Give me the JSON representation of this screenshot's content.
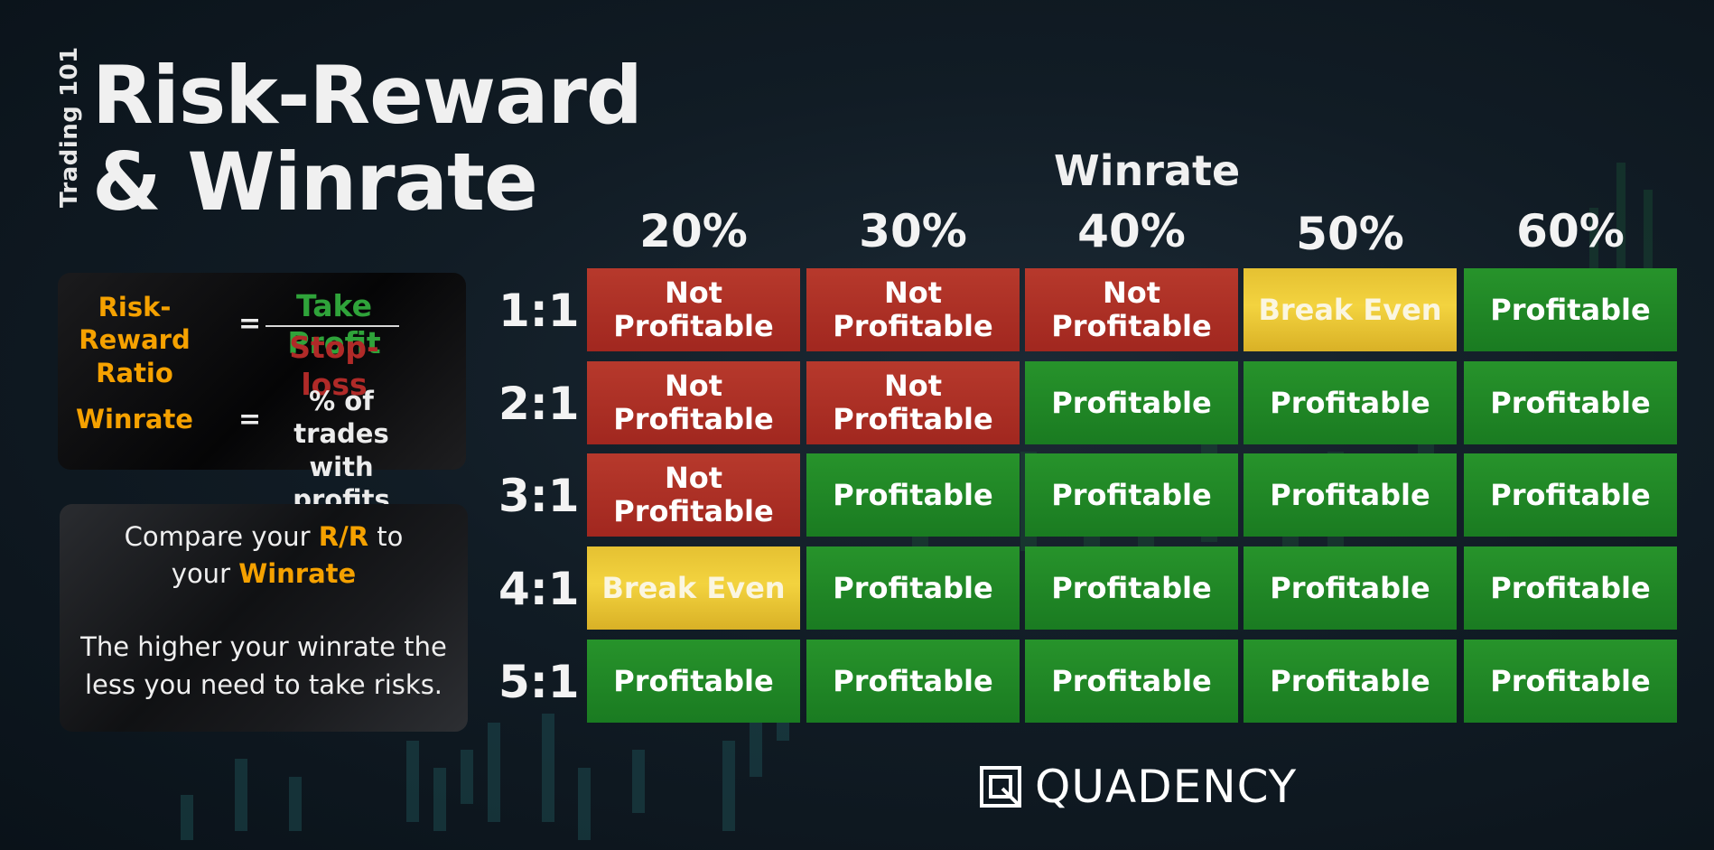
{
  "header": {
    "side_tag": "Trading 101",
    "title_line1": "Risk-Reward",
    "title_line2": "& Winrate"
  },
  "formulas": {
    "rr_label_line1": "Risk-Reward",
    "rr_label_line2": "Ratio",
    "equals": "=",
    "numerator": "Take Profit",
    "denominator": "Stop-loss",
    "winrate_label": "Winrate",
    "winrate_def_line1": "% of trades",
    "winrate_def_line2": "with profits"
  },
  "tip": {
    "line1_a": "Compare your ",
    "line1_hl": "R/R",
    "line1_b": " to",
    "line2_a": "your ",
    "line2_hl": "Winrate",
    "line3": "The higher your winrate the",
    "line4": "less you need to take risks."
  },
  "table": {
    "title": "Winrate",
    "columns": [
      "20%",
      "30%",
      "40%",
      "50%",
      "60%"
    ],
    "rows": [
      {
        "label": "1:1",
        "cells": [
          [
            "Not",
            "Profitable"
          ],
          [
            "Not",
            "Profitable"
          ],
          [
            "Not",
            "Profitable"
          ],
          [
            "Break Even"
          ],
          [
            "Profitable"
          ]
        ],
        "types": [
          "not",
          "not",
          "not",
          "be",
          "pro"
        ]
      },
      {
        "label": "2:1",
        "cells": [
          [
            "Not",
            "Profitable"
          ],
          [
            "Not",
            "Profitable"
          ],
          [
            "Profitable"
          ],
          [
            "Profitable"
          ],
          [
            "Profitable"
          ]
        ],
        "types": [
          "not",
          "not",
          "pro",
          "pro",
          "pro"
        ]
      },
      {
        "label": "3:1",
        "cells": [
          [
            "Not",
            "Profitable"
          ],
          [
            "Profitable"
          ],
          [
            "Profitable"
          ],
          [
            "Profitable"
          ],
          [
            "Profitable"
          ]
        ],
        "types": [
          "not",
          "pro",
          "pro",
          "pro",
          "pro"
        ]
      },
      {
        "label": "4:1",
        "cells": [
          [
            "Break Even"
          ],
          [
            "Profitable"
          ],
          [
            "Profitable"
          ],
          [
            "Profitable"
          ],
          [
            "Profitable"
          ]
        ],
        "types": [
          "be",
          "pro",
          "pro",
          "pro",
          "pro"
        ]
      },
      {
        "label": "5:1",
        "cells": [
          [
            "Profitable"
          ],
          [
            "Profitable"
          ],
          [
            "Profitable"
          ],
          [
            "Profitable"
          ],
          [
            "Profitable"
          ]
        ],
        "types": [
          "pro",
          "pro",
          "pro",
          "pro",
          "pro"
        ]
      }
    ]
  },
  "colors": {
    "not_profitable": "#ab2f25",
    "profitable": "#21872a",
    "break_even": "#efca38",
    "highlight": "#f5a100"
  },
  "brand": {
    "name": "QUADENCY",
    "logo_icon": "quadency-logo-icon"
  }
}
